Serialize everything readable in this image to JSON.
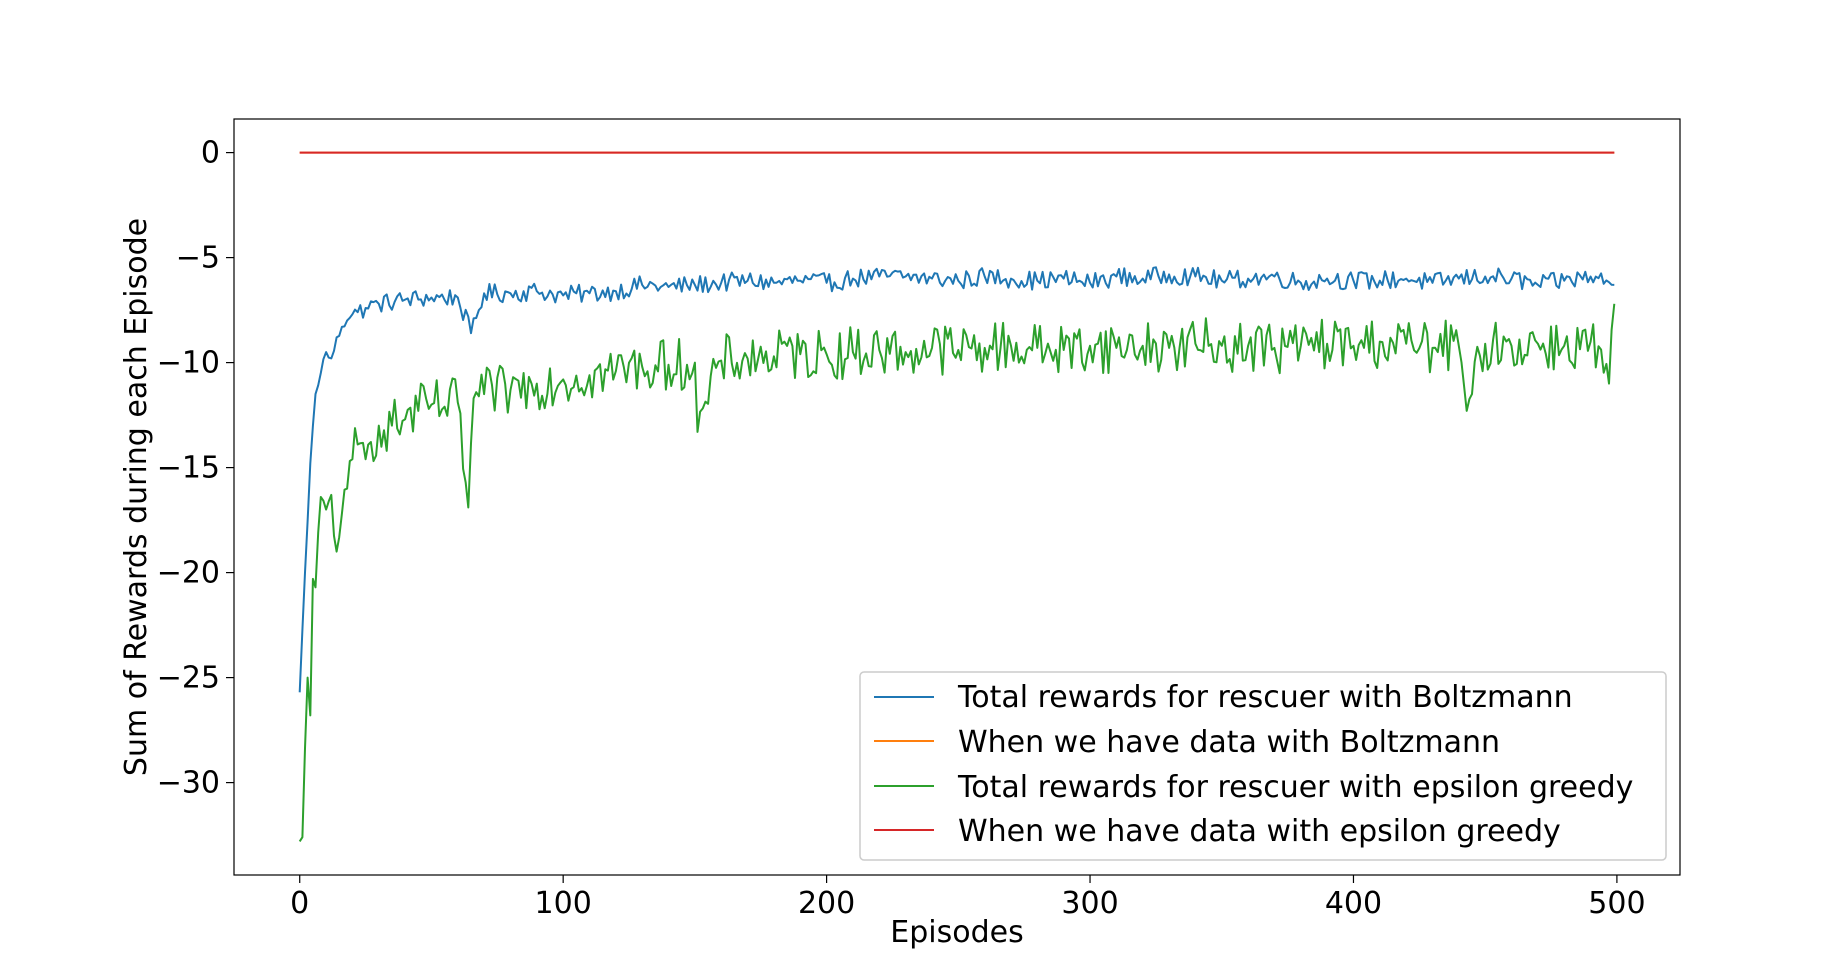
{
  "chart_data": {
    "type": "line",
    "title": "",
    "xlabel": "Episodes",
    "ylabel": "Sum of Rewards during each Episode",
    "xlim": [
      -24.95,
      523.95
    ],
    "ylim": [
      -34.4,
      1.6
    ],
    "xticks": [
      0,
      100,
      200,
      300,
      400,
      500
    ],
    "yticks": [
      0,
      -5,
      -10,
      -15,
      -20,
      -25,
      -30
    ],
    "xtick_labels": [
      "0",
      "100",
      "200",
      "300",
      "400",
      "500"
    ],
    "ytick_labels": [
      "0",
      "−5",
      "−10",
      "−15",
      "−20",
      "−25",
      "−30"
    ],
    "grid": false,
    "legend_position": "lower-right",
    "n_episodes": 500,
    "series": [
      {
        "name": "Total rewards for rescuer with Boltzmann",
        "color": "#1f77b4",
        "x": [
          0,
          2,
          4,
          6,
          8,
          10,
          12,
          14,
          16,
          18,
          20,
          22,
          25,
          30,
          40,
          50,
          60,
          65,
          70,
          80,
          90,
          100,
          110,
          120,
          130,
          140,
          150,
          160,
          170,
          180,
          190,
          200,
          210,
          220,
          230,
          240,
          250,
          260,
          270,
          280,
          290,
          300,
          310,
          320,
          330,
          340,
          350,
          360,
          370,
          380,
          390,
          400,
          410,
          420,
          430,
          440,
          450,
          460,
          470,
          480,
          490,
          499
        ],
        "values": [
          -25.7,
          -20.0,
          -14.8,
          -11.5,
          -10.5,
          -9.5,
          -9.8,
          -8.8,
          -8.3,
          -8.0,
          -7.7,
          -7.6,
          -7.4,
          -7.2,
          -7.0,
          -6.9,
          -6.9,
          -8.6,
          -6.7,
          -6.7,
          -6.6,
          -6.8,
          -6.7,
          -6.6,
          -6.3,
          -6.4,
          -6.3,
          -6.2,
          -6.1,
          -6.2,
          -6.1,
          -6.2,
          -6.0,
          -5.9,
          -5.9,
          -6.0,
          -6.1,
          -5.9,
          -6.0,
          -6.1,
          -6.0,
          -6.2,
          -5.9,
          -6.0,
          -5.8,
          -5.9,
          -6.1,
          -6.0,
          -5.9,
          -6.2,
          -6.0,
          -6.1,
          -6.1,
          -6.0,
          -6.2,
          -6.0,
          -5.9,
          -6.0,
          -6.3,
          -6.1,
          -5.9,
          -6.3
        ]
      },
      {
        "name": "When we have data with Boltzmann",
        "color": "#ff7f0e",
        "x": [
          0,
          499
        ],
        "values": [
          0,
          0
        ]
      },
      {
        "name": "Total rewards for rescuer with epsilon greedy",
        "color": "#2ca02c",
        "x": [
          0,
          1,
          3,
          4,
          5,
          6,
          8,
          10,
          12,
          14,
          16,
          18,
          20,
          22,
          25,
          30,
          35,
          40,
          45,
          50,
          55,
          60,
          64,
          66,
          70,
          80,
          90,
          100,
          110,
          120,
          130,
          140,
          150,
          151,
          160,
          170,
          180,
          190,
          200,
          210,
          220,
          230,
          240,
          250,
          260,
          270,
          280,
          290,
          300,
          310,
          320,
          330,
          340,
          350,
          360,
          370,
          380,
          390,
          400,
          410,
          420,
          430,
          440,
          443,
          450,
          460,
          470,
          480,
          490,
          497,
          499
        ],
        "values": [
          -32.8,
          -32.6,
          -25.0,
          -26.8,
          -20.3,
          -20.7,
          -16.4,
          -17.0,
          -16.3,
          -19.0,
          -17.2,
          -16.0,
          -14.6,
          -13.9,
          -14.6,
          -13.0,
          -13.0,
          -12.7,
          -12.3,
          -12.0,
          -12.1,
          -11.9,
          -16.9,
          -11.7,
          -11.5,
          -11.3,
          -11.0,
          -10.8,
          -10.6,
          -10.4,
          -10.2,
          -10.1,
          -10.0,
          -13.3,
          -9.9,
          -9.8,
          -9.7,
          -9.6,
          -9.6,
          -9.5,
          -9.4,
          -9.5,
          -9.3,
          -9.4,
          -9.3,
          -9.2,
          -9.3,
          -9.4,
          -9.2,
          -9.3,
          -9.2,
          -9.3,
          -9.1,
          -9.2,
          -9.2,
          -9.3,
          -9.2,
          -9.1,
          -9.2,
          -9.0,
          -9.1,
          -9.3,
          -9.2,
          -12.3,
          -9.1,
          -9.2,
          -9.1,
          -9.2,
          -9.0,
          -11.0,
          -7.2
        ]
      },
      {
        "name": "When we have data with epsilon greedy",
        "color": "#d62728",
        "x": [
          0,
          499
        ],
        "values": [
          0,
          0
        ]
      }
    ]
  }
}
